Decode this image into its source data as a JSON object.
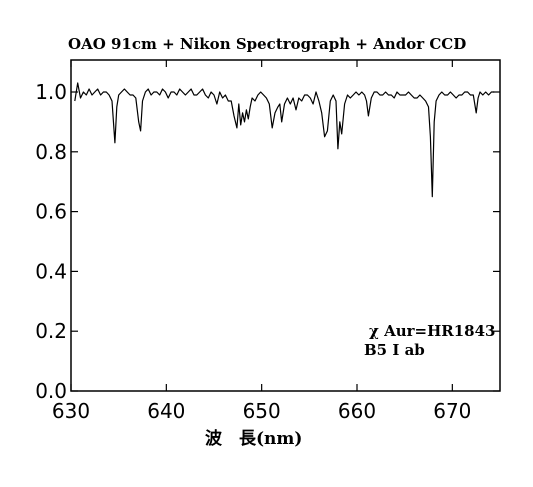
{
  "chart_data": {
    "type": "line",
    "title": "OAO 91cm + Nikon Spectrograph + Andor CCD",
    "xlabel": "波　長(nm)",
    "ylabel": "",
    "xlim": [
      630,
      675
    ],
    "ylim": [
      0.0,
      1.1
    ],
    "xticks": [
      630,
      640,
      650,
      660,
      670
    ],
    "yticks": [
      0.0,
      0.2,
      0.4,
      0.6,
      0.8,
      1.0
    ],
    "xtick_labels": [
      "630",
      "640",
      "650",
      "660",
      "670"
    ],
    "ytick_labels": [
      "0.0",
      "0.2",
      "0.4",
      "0.6",
      "0.8",
      "1.0"
    ],
    "grid": false,
    "annotations": [
      "χ Aur=HR1843",
      "B5 Ⅰ ab"
    ],
    "series": [
      {
        "x": [
          630.4,
          630.7,
          631.0,
          631.3,
          631.6,
          631.9,
          632.2,
          632.5,
          632.8,
          633.1,
          633.4,
          633.7,
          634.0,
          634.3,
          634.6,
          634.8,
          635.0,
          635.3,
          635.6,
          635.9,
          636.2,
          636.5,
          636.8,
          637.1,
          637.3,
          637.5,
          637.8,
          638.1,
          638.4,
          638.7,
          639.0,
          639.3,
          639.6,
          639.9,
          640.2,
          640.5,
          640.8,
          641.1,
          641.4,
          641.7,
          642.0,
          642.3,
          642.6,
          642.9,
          643.2,
          643.5,
          643.8,
          644.1,
          644.4,
          644.7,
          645.0,
          645.3,
          645.6,
          645.9,
          646.2,
          646.5,
          646.8,
          647.1,
          647.4,
          647.6,
          647.8,
          648.0,
          648.2,
          648.4,
          648.6,
          648.8,
          649.0,
          649.3,
          649.6,
          649.9,
          650.2,
          650.5,
          650.8,
          651.1,
          651.4,
          651.7,
          651.9,
          652.1,
          652.4,
          652.7,
          653.0,
          653.3,
          653.6,
          653.9,
          654.2,
          654.5,
          654.8,
          655.1,
          655.4,
          655.7,
          656.0,
          656.3,
          656.6,
          656.9,
          657.2,
          657.5,
          657.8,
          658.0,
          658.2,
          658.4,
          658.7,
          659.0,
          659.3,
          659.6,
          659.9,
          660.2,
          660.5,
          660.8,
          661.0,
          661.2,
          661.5,
          661.8,
          662.1,
          662.4,
          662.7,
          663.0,
          663.3,
          663.6,
          663.9,
          664.2,
          664.5,
          664.8,
          665.1,
          665.4,
          665.7,
          666.0,
          666.3,
          666.6,
          666.9,
          667.2,
          667.5,
          667.7,
          667.9,
          668.1,
          668.3,
          668.6,
          668.9,
          669.2,
          669.5,
          669.8,
          670.1,
          670.4,
          670.7,
          671.0,
          671.3,
          671.6,
          671.9,
          672.2,
          672.5,
          672.7,
          672.9,
          673.2,
          673.5,
          673.8,
          674.1,
          674.4
        ],
        "y": [
          0.97,
          1.03,
          0.98,
          1.0,
          0.99,
          1.01,
          0.99,
          1.0,
          1.01,
          0.99,
          1.0,
          1.0,
          0.99,
          0.97,
          0.83,
          0.95,
          0.99,
          1.0,
          1.01,
          1.0,
          0.99,
          0.99,
          0.98,
          0.9,
          0.87,
          0.97,
          1.0,
          1.01,
          0.99,
          1.0,
          1.0,
          0.99,
          1.01,
          1.0,
          0.98,
          1.0,
          1.0,
          0.99,
          1.01,
          1.0,
          0.99,
          1.0,
          1.01,
          0.99,
          0.99,
          1.0,
          1.01,
          0.99,
          0.98,
          1.0,
          0.99,
          0.96,
          1.0,
          0.98,
          0.99,
          0.97,
          0.97,
          0.92,
          0.88,
          0.96,
          0.89,
          0.93,
          0.9,
          0.94,
          0.91,
          0.95,
          0.98,
          0.97,
          0.99,
          1.0,
          0.99,
          0.98,
          0.96,
          0.88,
          0.93,
          0.95,
          0.96,
          0.9,
          0.96,
          0.98,
          0.96,
          0.98,
          0.94,
          0.98,
          0.97,
          0.99,
          0.99,
          0.98,
          0.96,
          1.0,
          0.97,
          0.93,
          0.85,
          0.87,
          0.97,
          0.99,
          0.97,
          0.81,
          0.9,
          0.86,
          0.96,
          0.99,
          0.98,
          0.99,
          1.0,
          0.99,
          1.0,
          0.99,
          0.97,
          0.92,
          0.98,
          1.0,
          1.0,
          0.99,
          0.99,
          1.0,
          0.99,
          0.99,
          0.98,
          1.0,
          0.99,
          0.99,
          0.99,
          1.0,
          0.99,
          0.98,
          0.98,
          0.99,
          0.98,
          0.97,
          0.95,
          0.85,
          0.65,
          0.9,
          0.97,
          0.99,
          1.0,
          0.99,
          0.99,
          1.0,
          0.99,
          0.98,
          0.99,
          0.99,
          1.0,
          1.0,
          0.99,
          0.99,
          0.93,
          0.98,
          1.0,
          0.99,
          1.0,
          0.99,
          1.0,
          1.0
        ]
      }
    ]
  }
}
